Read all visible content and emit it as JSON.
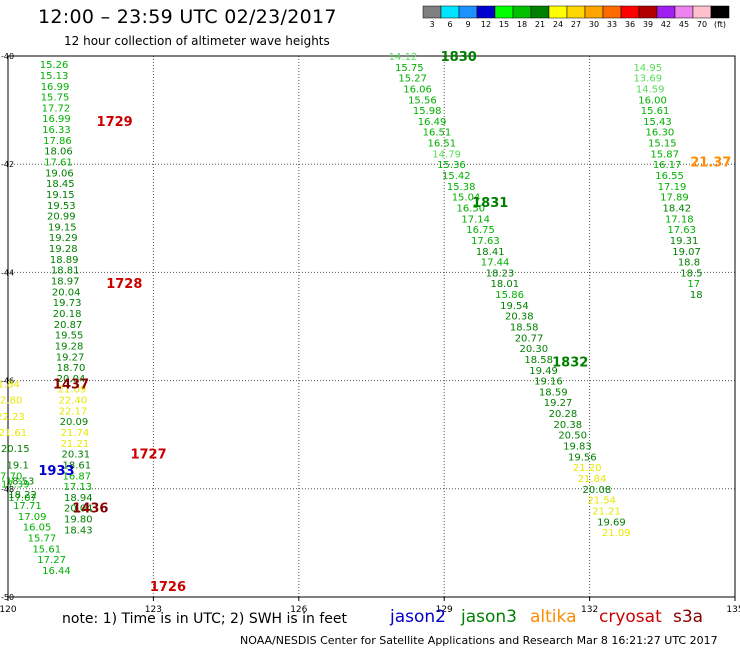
{
  "header": {
    "title": "12:00 – 23:59 UTC 02/23/2017",
    "subtitle": "12 hour collection of altimeter wave heights"
  },
  "legend": {
    "unit": "(ft)",
    "items": [
      {
        "label": "3",
        "color": "#808080"
      },
      {
        "label": "6",
        "color": "#00e5ff"
      },
      {
        "label": "9",
        "color": "#1e90ff"
      },
      {
        "label": "12",
        "color": "#0000cd"
      },
      {
        "label": "15",
        "color": "#00ff00"
      },
      {
        "label": "18",
        "color": "#00c000"
      },
      {
        "label": "21",
        "color": "#008000"
      },
      {
        "label": "24",
        "color": "#ffff00"
      },
      {
        "label": "27",
        "color": "#ffd700"
      },
      {
        "label": "30",
        "color": "#ffa500"
      },
      {
        "label": "33",
        "color": "#ff6a00"
      },
      {
        "label": "36",
        "color": "#ff0000"
      },
      {
        "label": "39",
        "color": "#b00000"
      },
      {
        "label": "42",
        "color": "#a020f0"
      },
      {
        "label": "45",
        "color": "#ee82ee"
      },
      {
        "label": "70",
        "color": "#ffc0cb"
      },
      {
        "label": "",
        "color": "#000000"
      }
    ]
  },
  "footer": {
    "note": "note:  1) Time is in UTC;  2) SWH is in feet",
    "missions": [
      {
        "name": "jason2",
        "color": "#0000cc"
      },
      {
        "name": "jason3",
        "color": "#008000"
      },
      {
        "name": "altika",
        "color": "#ff8c00"
      },
      {
        "name": "cryosat",
        "color": "#cc0000"
      },
      {
        "name": "s3a",
        "color": "#880000"
      }
    ],
    "credit": "NOAA/NESDIS Center for Satellite Applications and Research    Mar  8 16:21:27 UTC 2017"
  },
  "chart_data": {
    "type": "scatter",
    "xlim": [
      120,
      135
    ],
    "ylim": [
      -50,
      -40
    ],
    "x_ticks": [
      "120",
      "123",
      "126",
      "129",
      "132",
      "135"
    ],
    "y_ticks": [
      "-40",
      "-42",
      "-44",
      "-46",
      "-48",
      "-50"
    ],
    "grid": true,
    "series": [
      {
        "name": "1729",
        "color": "#008000",
        "points": [
          [
            120.95,
            -40.15,
            "15.26"
          ],
          [
            120.95,
            -40.35,
            "15.13"
          ],
          [
            120.97,
            -40.55,
            "16.99"
          ],
          [
            120.97,
            -40.75,
            "15.75"
          ],
          [
            120.99,
            -40.95,
            "17.72"
          ],
          [
            121.0,
            -41.15,
            "16.99"
          ],
          [
            121.0,
            -41.35,
            "16.33"
          ],
          [
            121.02,
            -41.55,
            "17.86"
          ],
          [
            121.04,
            -41.75,
            "18.06"
          ],
          [
            121.04,
            -41.95,
            "17.61"
          ],
          [
            121.06,
            -42.15,
            "19.06"
          ],
          [
            121.08,
            -42.35,
            "18.45"
          ],
          [
            121.08,
            -42.55,
            "19.15"
          ],
          [
            121.1,
            -42.75,
            "19.53"
          ],
          [
            121.1,
            -42.95,
            "20.99"
          ],
          [
            121.12,
            -43.15,
            "19.15"
          ],
          [
            121.14,
            -43.35,
            "19.29"
          ],
          [
            121.14,
            -43.55,
            "19.28"
          ],
          [
            121.16,
            -43.75,
            "18.89"
          ],
          [
            121.18,
            -43.95,
            "18.81"
          ],
          [
            121.18,
            -44.15,
            "18.97"
          ],
          [
            121.2,
            -44.35,
            "20.04"
          ],
          [
            121.22,
            -44.55,
            "19.73"
          ],
          [
            121.22,
            -44.75,
            "20.18"
          ],
          [
            121.24,
            -44.95,
            "20.87"
          ],
          [
            121.26,
            -45.15,
            "19.55"
          ],
          [
            121.26,
            -45.35,
            "19.28"
          ],
          [
            121.28,
            -45.55,
            "19.27"
          ],
          [
            121.3,
            -45.75,
            "18.70"
          ],
          [
            121.3,
            -45.95,
            "20.04"
          ],
          [
            121.32,
            -46.15,
            "21.09"
          ],
          [
            121.34,
            -46.35,
            "22.40"
          ],
          [
            121.34,
            -46.55,
            "22.17"
          ],
          [
            121.36,
            -46.75,
            "20.09"
          ],
          [
            121.38,
            -46.95,
            "21.74"
          ],
          [
            121.38,
            -47.15,
            "21.21"
          ],
          [
            121.4,
            -47.35,
            "20.31"
          ],
          [
            121.42,
            -47.55,
            "18.61"
          ],
          [
            121.42,
            -47.75,
            "16.87"
          ],
          [
            121.44,
            -47.95,
            "17.13"
          ],
          [
            121.45,
            -48.15,
            "18.94"
          ],
          [
            121.45,
            -48.35,
            "20.04"
          ],
          [
            121.45,
            -48.55,
            "19.80"
          ],
          [
            121.45,
            -48.75,
            "18.43"
          ]
        ]
      },
      {
        "name": "1830",
        "color": "#008000",
        "points": [
          [
            128.15,
            -40.0,
            "14.12"
          ],
          [
            128.28,
            -40.2,
            "15.75"
          ],
          [
            128.35,
            -40.4,
            "15.27"
          ],
          [
            128.45,
            -40.6,
            "16.06"
          ],
          [
            128.55,
            -40.8,
            "15.56"
          ],
          [
            128.65,
            -41.0,
            "15.98"
          ],
          [
            128.75,
            -41.2,
            "16.49"
          ],
          [
            128.85,
            -41.4,
            "16.51"
          ],
          [
            128.95,
            -41.6,
            "16.51"
          ],
          [
            129.05,
            -41.8,
            "14.79"
          ],
          [
            129.15,
            -42.0,
            "15.36"
          ],
          [
            129.25,
            -42.2,
            "15.42"
          ],
          [
            129.35,
            -42.4,
            "15.38"
          ],
          [
            129.45,
            -42.6,
            "15.04"
          ],
          [
            129.55,
            -42.8,
            "16.50"
          ],
          [
            129.65,
            -43.0,
            "17.14"
          ],
          [
            129.75,
            -43.2,
            "16.75"
          ],
          [
            129.85,
            -43.4,
            "17.63"
          ],
          [
            129.95,
            -43.6,
            "18.41"
          ],
          [
            130.05,
            -43.8,
            "17.44"
          ],
          [
            130.15,
            -44.0,
            "18.23"
          ],
          [
            130.25,
            -44.2,
            "18.01"
          ],
          [
            130.35,
            -44.4,
            "15.86"
          ],
          [
            130.45,
            -44.6,
            "19.54"
          ],
          [
            130.55,
            -44.8,
            "20.38"
          ],
          [
            130.65,
            -45.0,
            "18.58"
          ],
          [
            130.75,
            -45.2,
            "20.77"
          ],
          [
            130.85,
            -45.4,
            "20.30"
          ],
          [
            130.95,
            -45.6,
            "18.58"
          ],
          [
            131.05,
            -45.8,
            "19.49"
          ],
          [
            131.15,
            -46.0,
            "19.16"
          ],
          [
            131.25,
            -46.2,
            "18.59"
          ],
          [
            131.35,
            -46.4,
            "19.27"
          ],
          [
            131.45,
            -46.6,
            "20.28"
          ],
          [
            131.55,
            -46.8,
            "20.38"
          ],
          [
            131.65,
            -47.0,
            "20.50"
          ],
          [
            131.75,
            -47.2,
            "19.83"
          ],
          [
            131.85,
            -47.4,
            "19.56"
          ],
          [
            131.95,
            -47.6,
            "21.20"
          ],
          [
            132.05,
            -47.8,
            "21.84"
          ],
          [
            132.15,
            -48.0,
            "20.08"
          ],
          [
            132.25,
            -48.2,
            "21.54"
          ],
          [
            132.35,
            -48.4,
            "21.21"
          ],
          [
            132.45,
            -48.6,
            "19.69"
          ],
          [
            132.55,
            -48.8,
            "21.09"
          ]
        ]
      },
      {
        "name": "1831",
        "color": "#008000",
        "points": [
          [
            133.2,
            -40.2,
            "14.95"
          ],
          [
            133.2,
            -40.4,
            "13.69"
          ],
          [
            133.25,
            -40.6,
            "14.59"
          ],
          [
            133.3,
            -40.8,
            "16.00"
          ],
          [
            133.35,
            -41.0,
            "15.61"
          ],
          [
            133.4,
            -41.2,
            "15.43"
          ],
          [
            133.45,
            -41.4,
            "16.30"
          ],
          [
            133.5,
            -41.6,
            "15.15"
          ],
          [
            133.55,
            -41.8,
            "15.87"
          ],
          [
            133.6,
            -42.0,
            "16.17"
          ],
          [
            133.65,
            -42.2,
            "16.55"
          ],
          [
            133.7,
            -42.4,
            "17.19"
          ],
          [
            133.75,
            -42.6,
            "17.89"
          ],
          [
            133.8,
            -42.8,
            "18.42"
          ],
          [
            133.85,
            -43.0,
            "17.18"
          ],
          [
            133.9,
            -43.2,
            "17.63"
          ],
          [
            133.95,
            -43.4,
            "19.31"
          ],
          [
            134.0,
            -43.6,
            "19.07"
          ],
          [
            134.05,
            -43.8,
            "18.8"
          ],
          [
            134.1,
            -44.0,
            "18.5"
          ],
          [
            134.15,
            -44.2,
            "17"
          ],
          [
            134.2,
            -44.4,
            "18"
          ]
        ]
      },
      {
        "name": "1437",
        "color": "#880000",
        "points": [
          [
            119.95,
            -46.05,
            "21.84"
          ],
          [
            120.0,
            -46.35,
            "22.80"
          ],
          [
            120.05,
            -46.65,
            "22.23"
          ],
          [
            120.1,
            -46.95,
            "21.61"
          ],
          [
            120.15,
            -47.25,
            "20.15"
          ],
          [
            120.2,
            -47.55,
            "19.1"
          ],
          [
            120.25,
            -47.85,
            "18.53"
          ],
          [
            120.3,
            -48.15,
            "17.07"
          ]
        ]
      },
      {
        "name": "1436",
        "color": "#880000",
        "points": [
          [
            120.0,
            -47.75,
            "17.70"
          ],
          [
            120.15,
            -47.9,
            "17.39"
          ],
          [
            120.3,
            -48.1,
            "18.22"
          ],
          [
            120.4,
            -48.3,
            "17.71"
          ],
          [
            120.5,
            -48.5,
            "17.09"
          ],
          [
            120.6,
            -48.7,
            "16.05"
          ],
          [
            120.7,
            -48.9,
            "15.77"
          ],
          [
            120.8,
            -49.1,
            "15.61"
          ],
          [
            120.9,
            -49.3,
            "17.27"
          ],
          [
            121.0,
            -49.5,
            "16.44"
          ]
        ]
      }
    ],
    "labels": [
      {
        "text": "1830",
        "x": 129.3,
        "y": -40.0,
        "color": "#008000"
      },
      {
        "text": "1729",
        "x": 122.2,
        "y": -41.2,
        "color": "#cc0000"
      },
      {
        "text": "21.37",
        "x": 134.5,
        "y": -41.95,
        "color": "#ff8c00"
      },
      {
        "text": "1831",
        "x": 129.95,
        "y": -42.7,
        "color": "#008000"
      },
      {
        "text": "1728",
        "x": 122.4,
        "y": -44.2,
        "color": "#cc0000"
      },
      {
        "text": "1832",
        "x": 131.6,
        "y": -45.65,
        "color": "#008000"
      },
      {
        "text": "1437",
        "x": 121.3,
        "y": -46.05,
        "color": "#880000"
      },
      {
        "text": "1727",
        "x": 122.9,
        "y": -47.35,
        "color": "#cc0000"
      },
      {
        "text": "1933",
        "x": 121.0,
        "y": -47.65,
        "color": "#0000cc"
      },
      {
        "text": "1436",
        "x": 121.7,
        "y": -48.35,
        "color": "#880000"
      },
      {
        "text": "1726",
        "x": 123.3,
        "y": -49.8,
        "color": "#cc0000"
      }
    ]
  }
}
